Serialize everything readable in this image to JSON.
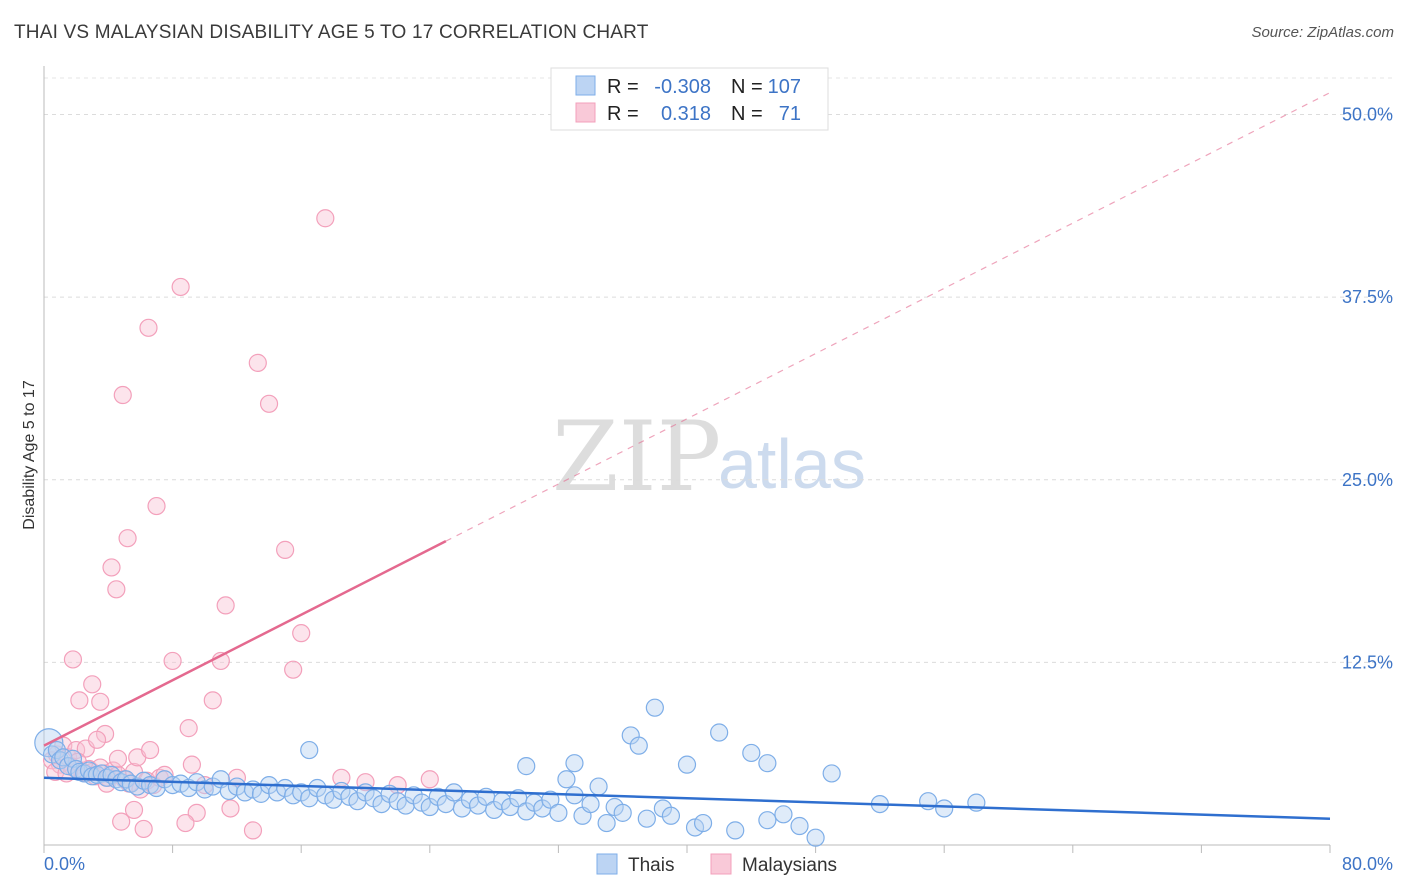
{
  "title": "THAI VS MALAYSIAN DISABILITY AGE 5 TO 17 CORRELATION CHART",
  "source": "Source: ZipAtlas.com",
  "watermark": {
    "zip": "ZIP",
    "atlas": "atlas"
  },
  "legend": {
    "rows": [
      {
        "r_label": "R = ",
        "r_value": "-0.308",
        "n_label": "N = ",
        "n_value": "107"
      },
      {
        "r_label": "R = ",
        "r_value": "0.318",
        "n_label": "N = ",
        "n_value": "71"
      }
    ]
  },
  "bottom_legend": {
    "thais": "Thais",
    "malaysians": "Malaysians"
  },
  "colors": {
    "blue": "#7eaee8",
    "blue_line": "#2f6fcf",
    "pink": "#f3a0bb",
    "pink_line": "#e4698f",
    "axis_text": "#3d74c6"
  },
  "chart_data": {
    "type": "scatter",
    "title": "THAI VS MALAYSIAN DISABILITY AGE 5 TO 17 CORRELATION CHART",
    "xlabel": "",
    "ylabel": "Disability Age 5 to 17",
    "xlim": [
      0,
      80
    ],
    "ylim": [
      0,
      52.5
    ],
    "x_tick_labels": [
      "0.0%",
      "80.0%"
    ],
    "y_ticks": [
      12.5,
      25.0,
      37.5,
      50.0
    ],
    "y_tick_labels": [
      "12.5%",
      "25.0%",
      "37.5%",
      "50.0%"
    ],
    "grid": true,
    "series": [
      {
        "name": "Thais",
        "r": -0.308,
        "n": 107,
        "trend": {
          "x0": 0,
          "y0": 4.6,
          "x1": 80,
          "y1": 1.8
        },
        "points": [
          [
            0.3,
            7.0
          ],
          [
            0.5,
            6.2
          ],
          [
            0.8,
            6.5
          ],
          [
            1.0,
            5.8
          ],
          [
            1.2,
            6.0
          ],
          [
            1.5,
            5.4
          ],
          [
            1.8,
            5.9
          ],
          [
            2.0,
            5.2
          ],
          [
            2.2,
            5.0
          ],
          [
            2.5,
            4.9
          ],
          [
            2.8,
            5.1
          ],
          [
            3.0,
            4.7
          ],
          [
            3.3,
            4.8
          ],
          [
            3.6,
            4.9
          ],
          [
            3.9,
            4.6
          ],
          [
            4.2,
            4.8
          ],
          [
            4.5,
            4.5
          ],
          [
            4.8,
            4.3
          ],
          [
            5.1,
            4.5
          ],
          [
            5.4,
            4.2
          ],
          [
            5.8,
            4.0
          ],
          [
            6.2,
            4.4
          ],
          [
            6.6,
            4.1
          ],
          [
            7.0,
            3.9
          ],
          [
            7.5,
            4.5
          ],
          [
            8.0,
            4.1
          ],
          [
            8.5,
            4.2
          ],
          [
            9.0,
            3.9
          ],
          [
            9.5,
            4.3
          ],
          [
            10.0,
            3.8
          ],
          [
            10.5,
            4.0
          ],
          [
            11.0,
            4.5
          ],
          [
            11.5,
            3.7
          ],
          [
            12.0,
            4.0
          ],
          [
            12.5,
            3.6
          ],
          [
            13.0,
            3.8
          ],
          [
            13.5,
            3.5
          ],
          [
            14.0,
            4.1
          ],
          [
            14.5,
            3.6
          ],
          [
            15.0,
            3.9
          ],
          [
            15.5,
            3.4
          ],
          [
            16.0,
            3.6
          ],
          [
            16.5,
            3.2
          ],
          [
            17.0,
            3.9
          ],
          [
            17.5,
            3.4
          ],
          [
            18.0,
            3.1
          ],
          [
            18.5,
            3.7
          ],
          [
            19.0,
            3.3
          ],
          [
            19.5,
            3.0
          ],
          [
            20.0,
            3.6
          ],
          [
            20.5,
            3.2
          ],
          [
            21.0,
            2.8
          ],
          [
            21.5,
            3.5
          ],
          [
            22.0,
            3.0
          ],
          [
            22.5,
            2.7
          ],
          [
            23.0,
            3.4
          ],
          [
            23.5,
            2.9
          ],
          [
            24.0,
            2.6
          ],
          [
            24.5,
            3.3
          ],
          [
            25.0,
            2.8
          ],
          [
            25.5,
            3.6
          ],
          [
            26.0,
            2.5
          ],
          [
            26.5,
            3.1
          ],
          [
            27.0,
            2.7
          ],
          [
            27.5,
            3.3
          ],
          [
            28.0,
            2.4
          ],
          [
            28.5,
            3.0
          ],
          [
            29.0,
            2.6
          ],
          [
            29.5,
            3.2
          ],
          [
            30.0,
            2.3
          ],
          [
            30.5,
            2.9
          ],
          [
            31.0,
            2.5
          ],
          [
            31.5,
            3.1
          ],
          [
            32.0,
            2.2
          ],
          [
            32.5,
            4.5
          ],
          [
            33.0,
            3.4
          ],
          [
            33.5,
            2.0
          ],
          [
            34.0,
            2.8
          ],
          [
            34.5,
            4.0
          ],
          [
            35.0,
            1.5
          ],
          [
            35.5,
            2.6
          ],
          [
            36.0,
            2.2
          ],
          [
            36.5,
            7.5
          ],
          [
            37.0,
            6.8
          ],
          [
            37.5,
            1.8
          ],
          [
            38.0,
            9.4
          ],
          [
            38.5,
            2.5
          ],
          [
            39.0,
            2.0
          ],
          [
            40.0,
            5.5
          ],
          [
            40.5,
            1.2
          ],
          [
            41.0,
            1.5
          ],
          [
            42.0,
            7.7
          ],
          [
            43.0,
            1.0
          ],
          [
            44.0,
            6.3
          ],
          [
            45.0,
            1.7
          ],
          [
            46.0,
            2.1
          ],
          [
            47.0,
            1.3
          ],
          [
            48.0,
            0.5
          ],
          [
            49.0,
            4.9
          ],
          [
            16.5,
            6.5
          ],
          [
            30.0,
            5.4
          ],
          [
            33.0,
            5.6
          ],
          [
            45.0,
            5.6
          ],
          [
            52.0,
            2.8
          ],
          [
            55.0,
            3.0
          ],
          [
            56.0,
            2.5
          ],
          [
            58.0,
            2.9
          ]
        ]
      },
      {
        "name": "Malaysians",
        "r": 0.318,
        "n": 71,
        "trend": {
          "x0": 0,
          "y0": 6.8,
          "x1": 25,
          "y1": 20.8,
          "dash_to": {
            "x": 80,
            "y": 51.5
          }
        },
        "points": [
          [
            0.5,
            5.8
          ],
          [
            0.8,
            6.2
          ],
          [
            1.0,
            5.5
          ],
          [
            1.2,
            6.8
          ],
          [
            1.5,
            6.0
          ],
          [
            1.8,
            5.3
          ],
          [
            2.0,
            6.5
          ],
          [
            2.3,
            5.1
          ],
          [
            2.6,
            4.9
          ],
          [
            2.8,
            5.2
          ],
          [
            3.0,
            5.0
          ],
          [
            3.2,
            4.7
          ],
          [
            3.5,
            5.3
          ],
          [
            3.8,
            4.9
          ],
          [
            4.0,
            4.6
          ],
          [
            4.3,
            5.1
          ],
          [
            4.6,
            4.8
          ],
          [
            5.0,
            4.5
          ],
          [
            5.3,
            4.2
          ],
          [
            5.6,
            5.0
          ],
          [
            6.0,
            3.8
          ],
          [
            6.4,
            4.4
          ],
          [
            6.8,
            4.1
          ],
          [
            7.2,
            4.6
          ],
          [
            1.8,
            12.7
          ],
          [
            2.2,
            9.9
          ],
          [
            3.0,
            11.0
          ],
          [
            3.5,
            9.8
          ],
          [
            3.8,
            7.6
          ],
          [
            4.2,
            19.0
          ],
          [
            4.5,
            17.5
          ],
          [
            4.9,
            30.8
          ],
          [
            5.2,
            21.0
          ],
          [
            6.5,
            35.4
          ],
          [
            7.0,
            23.2
          ],
          [
            8.0,
            12.6
          ],
          [
            8.5,
            38.2
          ],
          [
            9.0,
            8.0
          ],
          [
            9.5,
            2.2
          ],
          [
            10.0,
            4.1
          ],
          [
            10.5,
            9.9
          ],
          [
            11.0,
            12.6
          ],
          [
            11.3,
            16.4
          ],
          [
            12.0,
            4.6
          ],
          [
            13.0,
            1.0
          ],
          [
            13.3,
            33.0
          ],
          [
            14.0,
            30.2
          ],
          [
            15.0,
            20.2
          ],
          [
            15.5,
            12.0
          ],
          [
            16.0,
            14.5
          ],
          [
            17.5,
            42.9
          ],
          [
            18.5,
            4.6
          ],
          [
            20.0,
            4.3
          ],
          [
            22.0,
            4.1
          ],
          [
            24.0,
            4.5
          ],
          [
            4.8,
            1.6
          ],
          [
            5.6,
            2.4
          ],
          [
            6.2,
            1.1
          ],
          [
            8.8,
            1.5
          ],
          [
            11.6,
            2.5
          ],
          [
            2.6,
            6.6
          ],
          [
            3.3,
            7.2
          ],
          [
            4.6,
            5.9
          ],
          [
            5.8,
            6.0
          ],
          [
            7.5,
            4.8
          ],
          [
            0.7,
            5.0
          ],
          [
            1.4,
            4.9
          ],
          [
            2.1,
            5.7
          ],
          [
            6.6,
            6.5
          ],
          [
            9.2,
            5.5
          ],
          [
            3.9,
            4.2
          ]
        ]
      }
    ]
  }
}
